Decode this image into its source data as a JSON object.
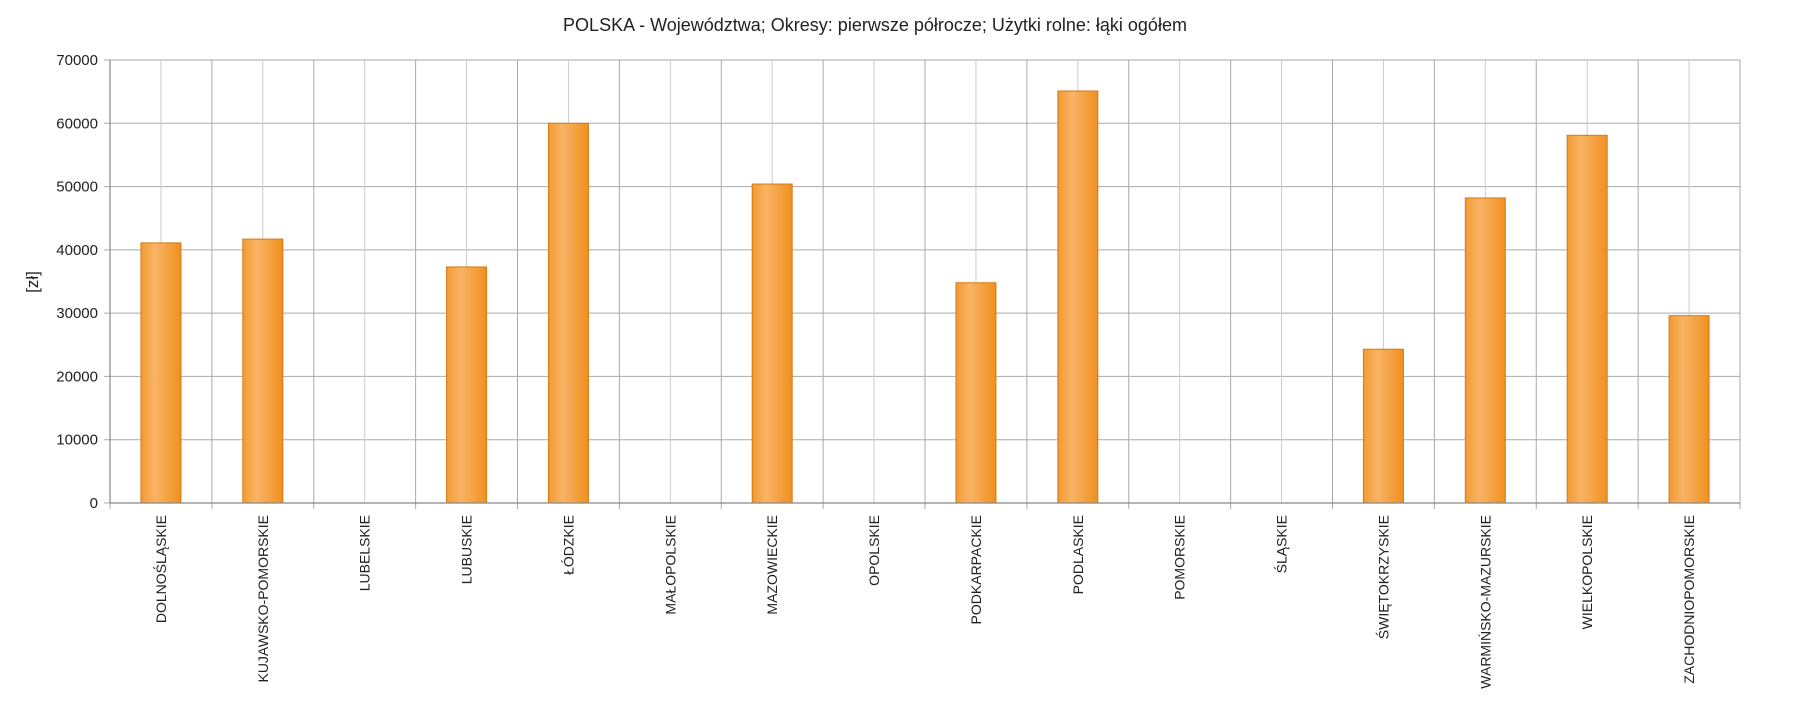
{
  "chart_data": {
    "type": "bar",
    "title": "POLSKA - Województwa; Okresy: pierwsze półrocze; Użytki rolne: łąki ogółem",
    "xlabel": "",
    "ylabel": "[zł]",
    "ylim": [
      0,
      70000
    ],
    "yticks": [
      0,
      10000,
      20000,
      30000,
      40000,
      50000,
      60000,
      70000
    ],
    "grid": true,
    "categories": [
      "DOLNOŚLĄSKIE",
      "KUJAWSKO-POMORSKIE",
      "LUBELSKIE",
      "LUBUSKIE",
      "ŁÓDZKIE",
      "MAŁOPOLSKIE",
      "MAZOWIECKIE",
      "OPOLSKIE",
      "PODKARPACKIE",
      "PODLASKIE",
      "POMORSKIE",
      "ŚLĄSKIE",
      "ŚWIĘTOKRZYSKIE",
      "WARMIŃSKO-MAZURSKIE",
      "WIELKOPOLSKIE",
      "ZACHODNIOPOMORSKIE"
    ],
    "values": [
      41100,
      41700,
      null,
      37300,
      60000,
      null,
      50400,
      null,
      34800,
      65100,
      null,
      null,
      24300,
      48200,
      58100,
      29600
    ],
    "bar_color": "#f29a2e"
  }
}
